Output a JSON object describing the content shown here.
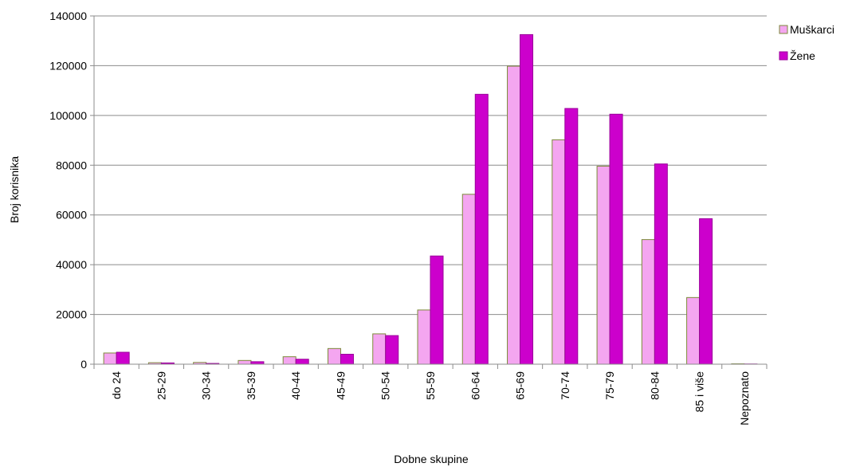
{
  "chart_data": {
    "type": "bar",
    "xlabel": "Dobne skupine",
    "ylabel": "Broj korisnika",
    "ylim": [
      0,
      140000
    ],
    "yticks": [
      "0",
      "20000",
      "40000",
      "60000",
      "80000",
      "100000",
      "120000",
      "140000"
    ],
    "grid": true,
    "legend_position": "top-right",
    "categories": [
      "do 24",
      "25-29",
      "30-34",
      "35-39",
      "40-44",
      "45-49",
      "50-54",
      "55-59",
      "60-64",
      "65-69",
      "70-74",
      "75-79",
      "80-84",
      "85 i više",
      "Nepoznato"
    ],
    "series": [
      {
        "name": "Muškarci",
        "color": "#f4a6f0",
        "border": "#7d8a3a",
        "values": [
          4500,
          600,
          700,
          1500,
          3000,
          6300,
          12200,
          21800,
          68300,
          119800,
          90200,
          79600,
          50100,
          26800,
          150
        ]
      },
      {
        "name": "Žene",
        "color": "#cc00cc",
        "border": "#9a009a",
        "values": [
          4800,
          500,
          300,
          1000,
          2000,
          4000,
          11500,
          43500,
          108500,
          132500,
          102800,
          100500,
          80500,
          58500,
          80
        ]
      }
    ]
  }
}
